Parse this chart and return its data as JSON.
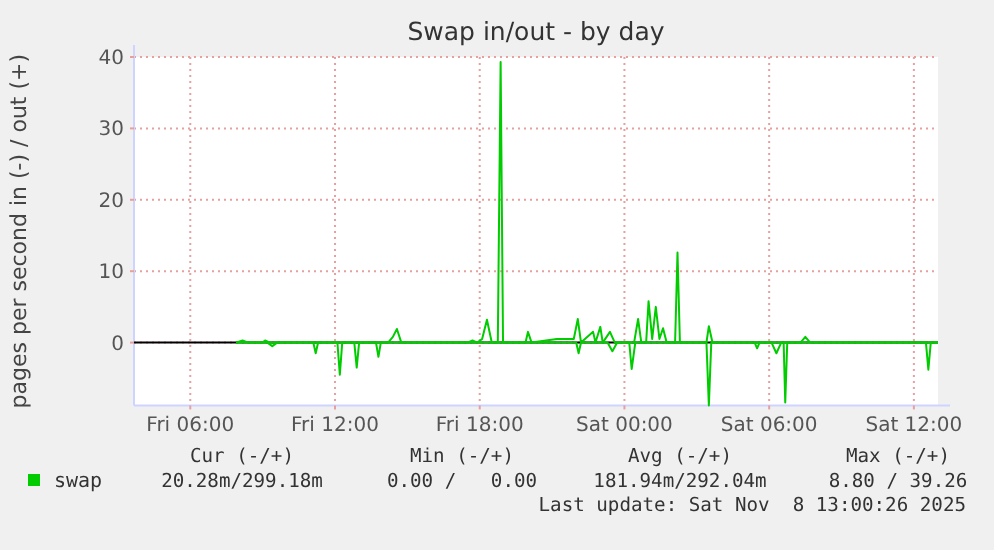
{
  "chart_data": {
    "type": "line",
    "title": "Swap in/out - by day",
    "ylabel": "pages per second in (-) / out (+)",
    "xlim": [
      "2025-11-07T03:40",
      "2025-11-08T13:00"
    ],
    "xticks": [
      {
        "value": "2025-11-07T06:00",
        "label": "Fri 06:00"
      },
      {
        "value": "2025-11-07T12:00",
        "label": "Fri 12:00"
      },
      {
        "value": "2025-11-07T18:00",
        "label": "Fri 18:00"
      },
      {
        "value": "2025-11-08T00:00",
        "label": "Sat 00:00"
      },
      {
        "value": "2025-11-08T06:00",
        "label": "Sat 06:00"
      },
      {
        "value": "2025-11-08T12:00",
        "label": "Sat 12:00"
      }
    ],
    "ylim": [
      -8.8,
      40
    ],
    "yticks": [
      0,
      10,
      20,
      30,
      40
    ],
    "grid": true,
    "legend": "bottom left",
    "marker": "none",
    "line_style": "solid",
    "ref_lines": [
      {
        "axis": "y",
        "value": 0,
        "color": "#000000"
      }
    ],
    "series": [
      {
        "name": "swap",
        "color": "#00cc00",
        "x": [
          "2025-11-07T07:54",
          "2025-11-07T08:10",
          "2025-11-07T08:24",
          "2025-11-07T09:00",
          "2025-11-07T09:06",
          "2025-11-07T09:18",
          "2025-11-07T14:12",
          "2025-11-07T14:24",
          "2025-11-07T14:34",
          "2025-11-07T14:45",
          "2025-11-07T17:30",
          "2025-11-07T17:42",
          "2025-11-07T17:54",
          "2025-11-07T18:06",
          "2025-11-07T18:18",
          "2025-11-07T18:30",
          "2025-11-07T18:45",
          "2025-11-07T18:52",
          "2025-11-07T18:58",
          "2025-11-07T19:54",
          "2025-11-07T20:00",
          "2025-11-07T20:09",
          "2025-11-07T21:12",
          "2025-11-07T21:54",
          "2025-11-07T22:04",
          "2025-11-07T22:12",
          "2025-11-07T22:42",
          "2025-11-07T22:48",
          "2025-11-07T23:00",
          "2025-11-07T23:06",
          "2025-11-07T23:24",
          "2025-11-07T23:36",
          "2025-11-08T00:24",
          "2025-11-08T00:34",
          "2025-11-08T00:42",
          "2025-11-08T00:54",
          "2025-11-08T01:00",
          "2025-11-08T01:09",
          "2025-11-08T01:18",
          "2025-11-08T01:27",
          "2025-11-08T01:36",
          "2025-11-08T01:45",
          "2025-11-08T02:06",
          "2025-11-08T02:12",
          "2025-11-08T02:18",
          "2025-11-08T03:24",
          "2025-11-08T03:30",
          "2025-11-08T03:39",
          "2025-11-08T07:18",
          "2025-11-08T07:30",
          "2025-11-08T07:42",
          "2025-11-08T13:00"
        ],
        "values": [
          0,
          0.3,
          0,
          0,
          0.3,
          0,
          0,
          0.8,
          1.9,
          0,
          0,
          0.3,
          0,
          0.5,
          3.2,
          0,
          0,
          39.3,
          0,
          0,
          1.5,
          0,
          0.5,
          0.5,
          3.3,
          0,
          1.5,
          0,
          2.2,
          0,
          1.5,
          0,
          0,
          3.3,
          0,
          0,
          5.8,
          0.5,
          5.0,
          0.5,
          2.0,
          0,
          0,
          12.6,
          0,
          0,
          2.3,
          0,
          0,
          0.8,
          0,
          0
        ]
      },
      {
        "color": "#00cc00",
        "x": [
          "2025-11-07T07:54",
          "2025-11-07T09:12",
          "2025-11-07T09:24",
          "2025-11-07T09:36",
          "2025-11-07T11:06",
          "2025-11-07T11:12",
          "2025-11-07T11:18",
          "2025-11-07T12:06",
          "2025-11-07T12:12",
          "2025-11-07T12:18",
          "2025-11-07T12:48",
          "2025-11-07T12:54",
          "2025-11-07T13:00",
          "2025-11-07T13:42",
          "2025-11-07T13:48",
          "2025-11-07T13:54",
          "2025-11-07T22:00",
          "2025-11-07T22:06",
          "2025-11-07T22:12",
          "2025-11-07T23:18",
          "2025-11-07T23:30",
          "2025-11-07T23:42",
          "2025-11-08T00:12",
          "2025-11-08T00:18",
          "2025-11-08T00:27",
          "2025-11-08T03:24",
          "2025-11-08T03:30",
          "2025-11-08T03:36",
          "2025-11-08T05:24",
          "2025-11-08T05:30",
          "2025-11-08T05:36",
          "2025-11-08T06:06",
          "2025-11-08T06:18",
          "2025-11-08T06:30",
          "2025-11-08T06:36",
          "2025-11-08T06:40",
          "2025-11-08T06:45",
          "2025-11-08T12:30",
          "2025-11-08T12:36",
          "2025-11-08T12:42",
          "2025-11-08T13:00"
        ],
        "values": [
          0,
          0,
          -0.5,
          0,
          0,
          -1.5,
          0,
          0,
          -4.5,
          0,
          0,
          -3.5,
          0,
          0,
          -2,
          0,
          0,
          -1.5,
          0,
          0,
          -1.2,
          0,
          0,
          -3.7,
          0,
          0,
          -8.8,
          0,
          0,
          -0.8,
          0,
          0,
          -1.5,
          0,
          0,
          -8.4,
          0,
          0,
          -3.8,
          0,
          0
        ]
      }
    ],
    "annotations": [
      "Cur (-/+)",
      "Min (-/+)",
      "Avg (-/+)",
      "Max (-/+)",
      "20.28m/299.18m",
      "0.00 /   0.00",
      "181.94m/292.04m",
      "8.80 / 39.26",
      "Last update: Sat Nov  8 13:00:26 2025"
    ]
  }
}
